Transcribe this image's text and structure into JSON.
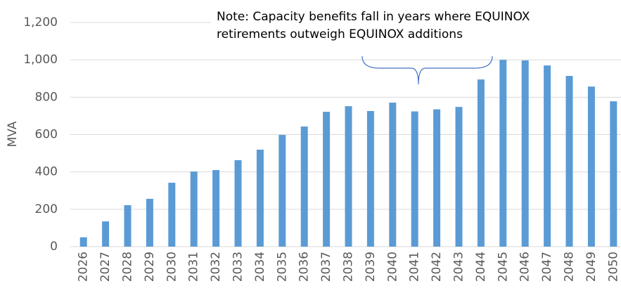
{
  "chart_data": {
    "type": "bar",
    "y_label": "MVA",
    "annotations": [
      "Note: Capacity benefits fall in years where EQUINOX",
      "retirements outweigh EQUINOX additions"
    ],
    "categories": [
      "2026",
      "2027",
      "2028",
      "2029",
      "2030",
      "2031",
      "2032",
      "2033",
      "2034",
      "2035",
      "2036",
      "2037",
      "2038",
      "2039",
      "2040",
      "2041",
      "2042",
      "2043",
      "2044",
      "2045",
      "2046",
      "2047",
      "2048",
      "2049",
      "2050"
    ],
    "values": [
      50,
      135,
      222,
      256,
      342,
      402,
      410,
      463,
      519,
      598,
      643,
      722,
      752,
      726,
      771,
      724,
      735,
      748,
      895,
      1000,
      997,
      970,
      914,
      857,
      778
    ],
    "color": "#5b9bd5",
    "ylim": [
      0,
      1200
    ],
    "yticks": [
      0,
      200,
      400,
      600,
      {
        "value": 800,
        "label": "800"
      },
      {
        "value": 1000,
        "label": "1,000"
      },
      {
        "value": 1200,
        "label": "1,200"
      }
    ],
    "grid": true
  }
}
